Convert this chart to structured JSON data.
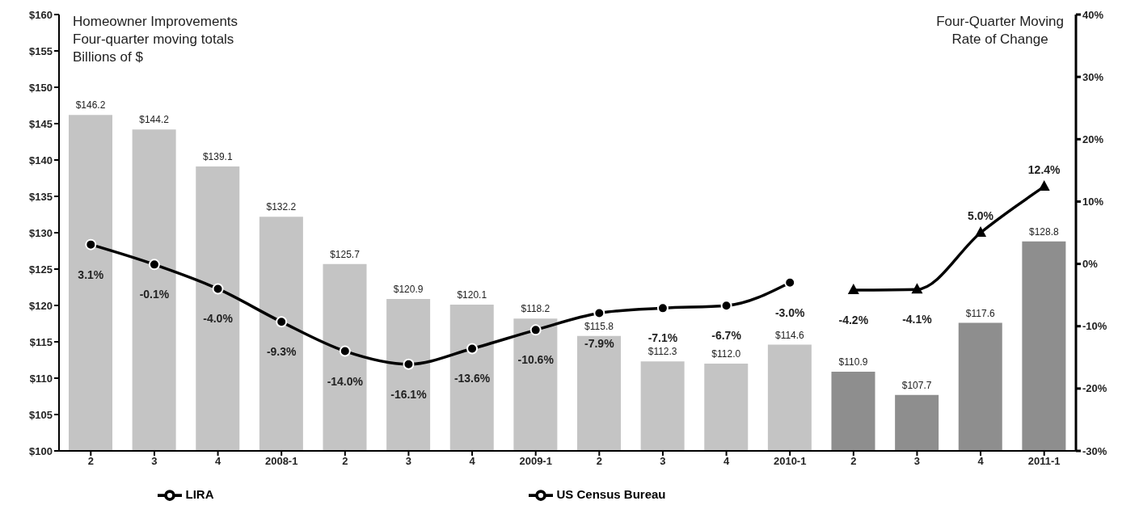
{
  "chart_data": {
    "type": "bar",
    "ylabel": "Homeowner Improvements\nFour-quarter moving totals\nBillions of $",
    "y2label": "Four-Quarter Moving\nRate of Change",
    "categories": [
      "2",
      "3",
      "4",
      "2008-1",
      "2",
      "3",
      "4",
      "2009-1",
      "2",
      "3",
      "4",
      "2010-1",
      "2",
      "3",
      "4",
      "2011-1"
    ],
    "values": [
      146.2,
      144.2,
      139.1,
      132.2,
      125.7,
      120.9,
      120.1,
      118.2,
      115.8,
      112.3,
      112.0,
      114.6,
      110.9,
      107.7,
      117.6,
      128.8
    ],
    "colors": [
      "#c4c4c4",
      "#c4c4c4",
      "#c4c4c4",
      "#c4c4c4",
      "#c4c4c4",
      "#c4c4c4",
      "#c4c4c4",
      "#c4c4c4",
      "#c4c4c4",
      "#c4c4c4",
      "#c4c4c4",
      "#c4c4c4",
      "#8e8e8e",
      "#8e8e8e",
      "#8e8e8e",
      "#8e8e8e"
    ],
    "value_labels": [
      "$146.2",
      "$144.2",
      "$139.1",
      "$132.2",
      "$125.7",
      "$120.9",
      "$120.1",
      "$118.2",
      "$115.8",
      "$112.3",
      "$112.0",
      "$114.6",
      "$110.9",
      "$107.7",
      "$117.6",
      "$128.8"
    ],
    "series": [
      {
        "type": "line",
        "name": "US Census Bureau",
        "color": "#000000",
        "axis": "y2",
        "marker": "circle",
        "values": [
          3.1,
          -0.1,
          -4.0,
          -9.3,
          -14.0,
          -16.1,
          -13.6,
          -10.6,
          -7.9,
          -7.1,
          -6.7,
          -3.0,
          null,
          null,
          null,
          null
        ],
        "value_labels": [
          "3.1%",
          "-0.1%",
          "-4.0%",
          "-9.3%",
          "-14.0%",
          "-16.1%",
          "-13.6%",
          "-10.6%",
          "-7.9%",
          "-7.1%",
          "-6.7%",
          "-3.0%",
          null,
          null,
          null,
          null
        ]
      },
      {
        "type": "line",
        "name": "LIRA",
        "color": "#000000",
        "axis": "y2",
        "marker": "triangle",
        "values": [
          null,
          null,
          null,
          null,
          null,
          null,
          null,
          null,
          null,
          null,
          null,
          null,
          -4.2,
          -4.1,
          5.0,
          12.4
        ],
        "value_labels": [
          null,
          null,
          null,
          null,
          null,
          null,
          null,
          null,
          null,
          null,
          null,
          null,
          "-4.2%",
          "-4.1%",
          "5.0%",
          "12.4%"
        ]
      }
    ],
    "ylim": [
      100,
      160
    ],
    "yticks": [
      {
        "value": 100,
        "label": "$100"
      },
      {
        "value": 105,
        "label": "$105"
      },
      {
        "value": 110,
        "label": "$110"
      },
      {
        "value": 115,
        "label": "$115"
      },
      {
        "value": 120,
        "label": "$120"
      },
      {
        "value": 125,
        "label": "$125"
      },
      {
        "value": 130,
        "label": "$130"
      },
      {
        "value": 135,
        "label": "$135"
      },
      {
        "value": 140,
        "label": "$140"
      },
      {
        "value": 145,
        "label": "$145"
      },
      {
        "value": 150,
        "label": "$150"
      },
      {
        "value": 155,
        "label": "$155"
      },
      {
        "value": 160,
        "label": "$160"
      }
    ],
    "y2lim": [
      -30,
      40
    ],
    "y2ticks": [
      {
        "value": -30,
        "label": "-30%"
      },
      {
        "value": -20,
        "label": "-20%"
      },
      {
        "value": -10,
        "label": "-10%"
      },
      {
        "value": 0,
        "label": "0%"
      },
      {
        "value": 10,
        "label": "10%"
      },
      {
        "value": 20,
        "label": "20%"
      },
      {
        "value": 30,
        "label": "30%"
      },
      {
        "value": 40,
        "label": "40%"
      }
    ],
    "legend": "bottom",
    "line_style": "solid"
  }
}
